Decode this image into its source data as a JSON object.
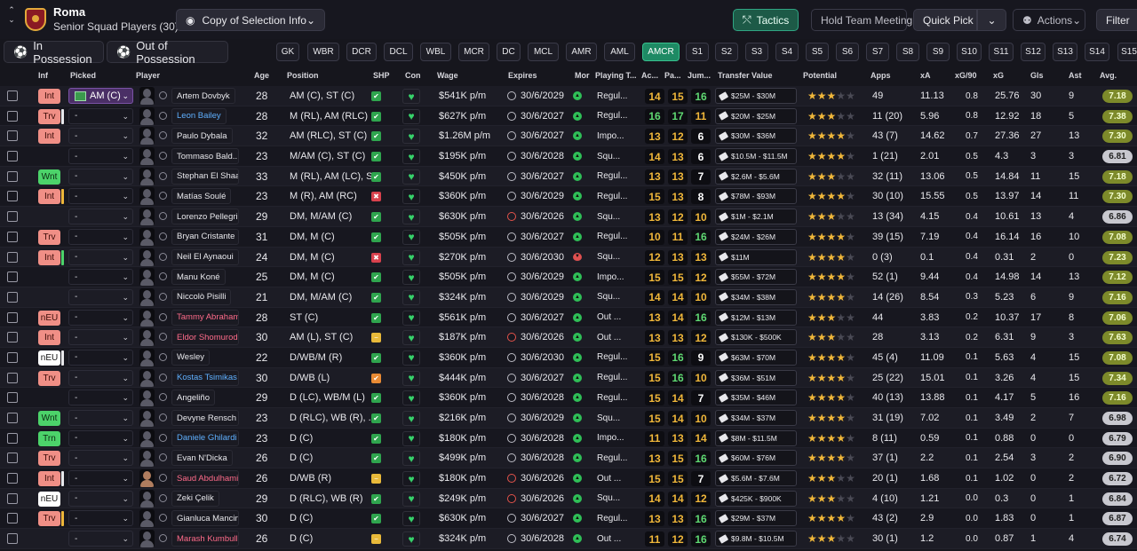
{
  "header": {
    "club": "Roma",
    "subtitle": "Senior Squad Players (30)",
    "copy_selection": "Copy of Selection Info",
    "tactics": "Tactics",
    "hold_meeting": "Hold Team Meeting",
    "quick_pick": "Quick Pick",
    "actions": "Actions",
    "filter": "Filter"
  },
  "possession": {
    "in": "In Possession",
    "out": "Out of Possession"
  },
  "position_chips": [
    "GK",
    "WBR",
    "DCR",
    "DCL",
    "WBL",
    "MCR",
    "DC",
    "MCL",
    "AMR",
    "AML",
    "AMCR",
    "S1",
    "S2",
    "S3",
    "S4",
    "S5",
    "S6",
    "S7",
    "S8",
    "S9",
    "S10",
    "S11",
    "S12",
    "S13",
    "S14",
    "S15"
  ],
  "selected_chip": "AMCR",
  "columns": {
    "inf": "Inf",
    "picked": "Picked",
    "player": "Player",
    "age": "Age",
    "position": "Position",
    "shp": "SHP",
    "con": "Con",
    "wage": "Wage",
    "expires": "Expires",
    "mor": "Mor",
    "playing_time": "Playing T...",
    "ac": "Ac...",
    "pa": "Pa...",
    "jum": "Jum...",
    "transfer_value": "Transfer Value",
    "potential": "Potential",
    "apps": "Apps",
    "xa": "xA",
    "xg90": "xG/90",
    "xg": "xG",
    "gls": "Gls",
    "ast": "Ast",
    "avg": "Avg."
  },
  "players": [
    {
      "inf": "Int",
      "inf_c": "red",
      "bar": "",
      "picked": "AM (C)",
      "name": "Artem Dovbyk",
      "nc": "",
      "age": "28",
      "pos": "AM (C), ST (C)",
      "shp": "g",
      "wage": "$541K p/m",
      "exp": "30/6/2029",
      "er": false,
      "mor": "g",
      "pt": "Regul...",
      "a": "14",
      "ac": "yl",
      "b": "15",
      "bc": "yl",
      "j": "16",
      "jc": "gr",
      "tv": "$25M - $30M",
      "pot": 3,
      "apps": "49",
      "xa": "11.13",
      "xg90": "0.8",
      "xg": "25.76",
      "gls": "30",
      "ast": "9",
      "avg": "7.18",
      "ag": "g"
    },
    {
      "inf": "Trv",
      "inf_c": "red",
      "bar": "#e8e8ec",
      "picked": "-",
      "name": "Leon Bailey",
      "nc": "blue",
      "age": "28",
      "pos": "M (RL), AM (RLC)",
      "shp": "g",
      "wage": "$627K p/m",
      "exp": "30/6/2027",
      "er": false,
      "mor": "g",
      "pt": "Regul...",
      "a": "16",
      "ac": "gr",
      "b": "17",
      "bc": "gr",
      "j": "11",
      "jc": "yl",
      "tv": "$20M - $25M",
      "pot": 3,
      "apps": "11 (20)",
      "xa": "5.96",
      "xg90": "0.8",
      "xg": "12.92",
      "gls": "18",
      "ast": "5",
      "avg": "7.38",
      "ag": "g"
    },
    {
      "inf": "Int",
      "inf_c": "red",
      "bar": "",
      "picked": "-",
      "name": "Paulo Dybala",
      "nc": "",
      "age": "32",
      "pos": "AM (RLC), ST (C)",
      "shp": "g",
      "wage": "$1.26M p/m",
      "exp": "30/6/2027",
      "er": false,
      "mor": "g",
      "pt": "Impo...",
      "a": "13",
      "ac": "yl",
      "b": "12",
      "bc": "yl",
      "j": "6",
      "jc": "wh",
      "tv": "$30M - $36M",
      "pot": 3.5,
      "apps": "43 (7)",
      "xa": "14.62",
      "xg90": "0.7",
      "xg": "27.36",
      "gls": "27",
      "ast": "13",
      "avg": "7.30",
      "ag": "g"
    },
    {
      "inf": "",
      "inf_c": "",
      "bar": "",
      "picked": "-",
      "name": "Tommaso Bald...",
      "nc": "",
      "age": "23",
      "pos": "M/AM (C), ST (C)",
      "shp": "g",
      "wage": "$195K p/m",
      "exp": "30/6/2028",
      "er": false,
      "mor": "g",
      "pt": "Squ...",
      "a": "14",
      "ac": "yl",
      "b": "13",
      "bc": "yl",
      "j": "6",
      "jc": "wh",
      "tv": "$10.5M - $11.5M",
      "pot": 3.5,
      "apps": "1 (21)",
      "xa": "2.01",
      "xg90": "0.5",
      "xg": "4.3",
      "gls": "3",
      "ast": "3",
      "avg": "6.81",
      "ag": "d"
    },
    {
      "inf": "Wnt",
      "inf_c": "grn",
      "bar": "",
      "picked": "-",
      "name": "Stephan El Shaa...",
      "nc": "",
      "age": "33",
      "pos": "M (RL), AM (LC), S...",
      "shp": "g",
      "wage": "$450K p/m",
      "exp": "30/6/2027",
      "er": false,
      "mor": "g",
      "pt": "Regul...",
      "a": "13",
      "ac": "yl",
      "b": "13",
      "bc": "yl",
      "j": "7",
      "jc": "wh",
      "tv": "$2.6M - $5.6M",
      "pot": 2.5,
      "apps": "32 (11)",
      "xa": "13.06",
      "xg90": "0.5",
      "xg": "14.84",
      "gls": "11",
      "ast": "15",
      "avg": "7.18",
      "ag": "g"
    },
    {
      "inf": "Int",
      "inf_c": "red",
      "bar": "#f0b73a",
      "picked": "-",
      "name": "Matías Soulé",
      "nc": "",
      "age": "23",
      "pos": "M (R), AM (RC)",
      "shp": "x",
      "wage": "$360K p/m",
      "exp": "30/6/2029",
      "er": false,
      "mor": "g",
      "pt": "Regul...",
      "a": "15",
      "ac": "yl",
      "b": "13",
      "bc": "yl",
      "j": "8",
      "jc": "wh",
      "tv": "$78M - $93M",
      "pot": 3.5,
      "apps": "30 (10)",
      "xa": "15.55",
      "xg90": "0.5",
      "xg": "13.97",
      "gls": "14",
      "ast": "11",
      "avg": "7.30",
      "ag": "g"
    },
    {
      "inf": "",
      "inf_c": "",
      "bar": "",
      "picked": "-",
      "name": "Lorenzo Pellegrini",
      "nc": "",
      "age": "29",
      "pos": "DM, M/AM (C)",
      "shp": "g",
      "wage": "$630K p/m",
      "exp": "30/6/2026",
      "er": true,
      "mor": "g",
      "pt": "Squ...",
      "a": "13",
      "ac": "yl",
      "b": "12",
      "bc": "yl",
      "j": "10",
      "jc": "yl",
      "tv": "$1M - $2.1M",
      "pot": 3,
      "apps": "13 (34)",
      "xa": "4.15",
      "xg90": "0.4",
      "xg": "10.61",
      "gls": "13",
      "ast": "4",
      "avg": "6.86",
      "ag": "d"
    },
    {
      "inf": "Trv",
      "inf_c": "red",
      "bar": "",
      "picked": "-",
      "name": "Bryan Cristante",
      "nc": "",
      "age": "31",
      "pos": "DM, M (C)",
      "shp": "g",
      "wage": "$505K p/m",
      "exp": "30/6/2027",
      "er": false,
      "mor": "g",
      "pt": "Regul...",
      "a": "10",
      "ac": "yl",
      "b": "11",
      "bc": "yl",
      "j": "16",
      "jc": "gr",
      "tv": "$24M - $26M",
      "pot": 3.5,
      "apps": "39 (15)",
      "xa": "7.19",
      "xg90": "0.4",
      "xg": "16.14",
      "gls": "16",
      "ast": "10",
      "avg": "7.08",
      "ag": "g"
    },
    {
      "inf": "Int",
      "inf_c": "red",
      "bar": "#4cd36a",
      "picked": "-",
      "name": "Neil El Aynaoui",
      "nc": "",
      "age": "24",
      "pos": "DM, M (C)",
      "shp": "x",
      "wage": "$270K p/m",
      "exp": "30/6/2030",
      "er": false,
      "mor": "r",
      "pt": "Squ...",
      "a": "12",
      "ac": "yl",
      "b": "13",
      "bc": "yl",
      "j": "13",
      "jc": "yl",
      "tv": "$11M",
      "pot": 3.5,
      "apps": "0 (3)",
      "xa": "0.1",
      "xg90": "0.4",
      "xg": "0.31",
      "gls": "2",
      "ast": "0",
      "avg": "7.23",
      "ag": "g"
    },
    {
      "inf": "",
      "inf_c": "",
      "bar": "",
      "picked": "-",
      "name": "Manu Koné",
      "nc": "",
      "age": "25",
      "pos": "DM, M (C)",
      "shp": "g",
      "wage": "$505K p/m",
      "exp": "30/6/2029",
      "er": false,
      "mor": "g",
      "pt": "Impo...",
      "a": "15",
      "ac": "yl",
      "b": "15",
      "bc": "yl",
      "j": "12",
      "jc": "yl",
      "tv": "$55M - $72M",
      "pot": 3.5,
      "apps": "52 (1)",
      "xa": "9.44",
      "xg90": "0.4",
      "xg": "14.98",
      "gls": "14",
      "ast": "13",
      "avg": "7.12",
      "ag": "g"
    },
    {
      "inf": "",
      "inf_c": "",
      "bar": "",
      "picked": "-",
      "name": "Niccolò Pisilli",
      "nc": "",
      "age": "21",
      "pos": "DM, M/AM (C)",
      "shp": "g",
      "wage": "$324K p/m",
      "exp": "30/6/2029",
      "er": false,
      "mor": "g",
      "pt": "Squ...",
      "a": "14",
      "ac": "yl",
      "b": "14",
      "bc": "yl",
      "j": "10",
      "jc": "yl",
      "tv": "$34M - $38M",
      "pot": 4,
      "apps": "14 (26)",
      "xa": "8.54",
      "xg90": "0.3",
      "xg": "5.23",
      "gls": "6",
      "ast": "9",
      "avg": "7.16",
      "ag": "g"
    },
    {
      "inf": "nEU",
      "inf_c": "red",
      "bar": "",
      "picked": "-",
      "name": "Tammy Abraham",
      "nc": "pink",
      "age": "28",
      "pos": "ST (C)",
      "shp": "g",
      "wage": "$561K p/m",
      "exp": "30/6/2027",
      "er": false,
      "mor": "g",
      "pt": "Out ...",
      "a": "13",
      "ac": "yl",
      "b": "14",
      "bc": "yl",
      "j": "16",
      "jc": "gr",
      "tv": "$12M - $13M",
      "pot": 3,
      "apps": "44",
      "xa": "3.83",
      "xg90": "0.2",
      "xg": "10.37",
      "gls": "17",
      "ast": "8",
      "avg": "7.06",
      "ag": "g"
    },
    {
      "inf": "Int",
      "inf_c": "red",
      "bar": "",
      "picked": "-",
      "name": "Eldor Shomurod...",
      "nc": "pink",
      "age": "30",
      "pos": "AM (L), ST (C)",
      "shp": "y",
      "wage": "$187K p/m",
      "exp": "30/6/2026",
      "er": true,
      "mor": "g",
      "pt": "Out ...",
      "a": "13",
      "ac": "yl",
      "b": "13",
      "bc": "yl",
      "j": "12",
      "jc": "yl",
      "tv": "$130K - $500K",
      "pot": 2.5,
      "apps": "28",
      "xa": "3.13",
      "xg90": "0.2",
      "xg": "6.31",
      "gls": "9",
      "ast": "3",
      "avg": "7.63",
      "ag": "g"
    },
    {
      "inf": "nEU",
      "inf_c": "wht",
      "bar": "#e8e8ec",
      "picked": "-",
      "name": "Wesley",
      "nc": "",
      "age": "22",
      "pos": "D/WB/M (R)",
      "shp": "g",
      "wage": "$360K p/m",
      "exp": "30/6/2030",
      "er": false,
      "mor": "g",
      "pt": "Regul...",
      "a": "15",
      "ac": "yl",
      "b": "16",
      "bc": "gr",
      "j": "9",
      "jc": "wh",
      "tv": "$63M - $70M",
      "pot": 3.5,
      "apps": "45 (4)",
      "xa": "11.09",
      "xg90": "0.1",
      "xg": "5.63",
      "gls": "4",
      "ast": "15",
      "avg": "7.08",
      "ag": "g"
    },
    {
      "inf": "Trv",
      "inf_c": "red",
      "bar": "",
      "picked": "-",
      "name": "Kostas Tsimikas",
      "nc": "blue",
      "age": "30",
      "pos": "D/WB (L)",
      "shp": "o",
      "wage": "$444K p/m",
      "exp": "30/6/2027",
      "er": false,
      "mor": "g",
      "pt": "Regul...",
      "a": "15",
      "ac": "yl",
      "b": "16",
      "bc": "gr",
      "j": "10",
      "jc": "yl",
      "tv": "$36M - $51M",
      "pot": 3.5,
      "apps": "25 (22)",
      "xa": "15.01",
      "xg90": "0.1",
      "xg": "3.26",
      "gls": "4",
      "ast": "15",
      "avg": "7.34",
      "ag": "g"
    },
    {
      "inf": "",
      "inf_c": "",
      "bar": "",
      "picked": "-",
      "name": "Angeliño",
      "nc": "",
      "age": "29",
      "pos": "D (LC), WB/M (L)",
      "shp": "g",
      "wage": "$360K p/m",
      "exp": "30/6/2028",
      "er": false,
      "mor": "g",
      "pt": "Regul...",
      "a": "15",
      "ac": "yl",
      "b": "14",
      "bc": "yl",
      "j": "7",
      "jc": "wh",
      "tv": "$35M - $46M",
      "pot": 3.5,
      "apps": "40 (13)",
      "xa": "13.88",
      "xg90": "0.1",
      "xg": "4.17",
      "gls": "5",
      "ast": "16",
      "avg": "7.16",
      "ag": "g"
    },
    {
      "inf": "Wnt",
      "inf_c": "grn",
      "bar": "",
      "picked": "-",
      "name": "Devyne Rensch",
      "nc": "",
      "age": "23",
      "pos": "D (RLC), WB (R), ...",
      "shp": "g",
      "wage": "$216K p/m",
      "exp": "30/6/2029",
      "er": false,
      "mor": "g",
      "pt": "Squ...",
      "a": "15",
      "ac": "yl",
      "b": "14",
      "bc": "yl",
      "j": "10",
      "jc": "yl",
      "tv": "$34M - $37M",
      "pot": 3.5,
      "apps": "31 (19)",
      "xa": "7.02",
      "xg90": "0.1",
      "xg": "3.49",
      "gls": "2",
      "ast": "7",
      "avg": "6.98",
      "ag": "d"
    },
    {
      "inf": "Trn",
      "inf_c": "grn",
      "bar": "",
      "picked": "-",
      "name": "Daniele Ghilardi",
      "nc": "blue",
      "age": "23",
      "pos": "D (C)",
      "shp": "g",
      "wage": "$180K p/m",
      "exp": "30/6/2028",
      "er": false,
      "mor": "g",
      "pt": "Impo...",
      "a": "11",
      "ac": "yl",
      "b": "13",
      "bc": "yl",
      "j": "14",
      "jc": "yl",
      "tv": "$8M - $11.5M",
      "pot": 3.5,
      "apps": "8 (11)",
      "xa": "0.59",
      "xg90": "0.1",
      "xg": "0.88",
      "gls": "0",
      "ast": "0",
      "avg": "6.79",
      "ag": "d"
    },
    {
      "inf": "Trv",
      "inf_c": "red",
      "bar": "",
      "picked": "-",
      "name": "Evan N'Dicka",
      "nc": "",
      "age": "26",
      "pos": "D (C)",
      "shp": "g",
      "wage": "$499K p/m",
      "exp": "30/6/2028",
      "er": false,
      "mor": "g",
      "pt": "Regul...",
      "a": "13",
      "ac": "yl",
      "b": "15",
      "bc": "yl",
      "j": "16",
      "jc": "gr",
      "tv": "$60M - $76M",
      "pot": 3.5,
      "apps": "37 (1)",
      "xa": "2.2",
      "xg90": "0.1",
      "xg": "2.54",
      "gls": "3",
      "ast": "2",
      "avg": "6.90",
      "ag": "d"
    },
    {
      "inf": "Int",
      "inf_c": "red",
      "bar": "#e8e8ec",
      "picked": "-",
      "name": "Saud Abdulhamid",
      "nc": "pink",
      "age": "26",
      "pos": "D/WB (R)",
      "shp": "y",
      "wage": "$180K p/m",
      "exp": "30/6/2026",
      "er": true,
      "mor": "g",
      "pt": "Out ...",
      "a": "15",
      "ac": "yl",
      "b": "15",
      "bc": "yl",
      "j": "7",
      "jc": "wh",
      "tv": "$5.6M - $7.6M",
      "pot": 3,
      "apps": "20 (1)",
      "xa": "1.68",
      "xg90": "0.1",
      "xg": "1.02",
      "gls": "0",
      "ast": "2",
      "avg": "6.72",
      "ag": "d",
      "photo": true
    },
    {
      "inf": "nEU",
      "inf_c": "wht",
      "bar": "",
      "picked": "-",
      "name": "Zeki Çelik",
      "nc": "",
      "age": "29",
      "pos": "D (RLC), WB (R)",
      "shp": "g",
      "wage": "$249K p/m",
      "exp": "30/6/2026",
      "er": true,
      "mor": "g",
      "pt": "Squ...",
      "a": "14",
      "ac": "yl",
      "b": "14",
      "bc": "yl",
      "j": "12",
      "jc": "yl",
      "tv": "$425K - $900K",
      "pot": 2.5,
      "apps": "4 (10)",
      "xa": "1.21",
      "xg90": "0.0",
      "xg": "0.3",
      "gls": "0",
      "ast": "1",
      "avg": "6.84",
      "ag": "d"
    },
    {
      "inf": "Trv",
      "inf_c": "red",
      "bar": "#f0b73a",
      "picked": "-",
      "name": "Gianluca Mancini",
      "nc": "",
      "age": "30",
      "pos": "D (C)",
      "shp": "g",
      "wage": "$630K p/m",
      "exp": "30/6/2027",
      "er": false,
      "mor": "g",
      "pt": "Regul...",
      "a": "13",
      "ac": "yl",
      "b": "13",
      "bc": "yl",
      "j": "16",
      "jc": "gr",
      "tv": "$29M - $37M",
      "pot": 3.5,
      "apps": "43 (2)",
      "xa": "2.9",
      "xg90": "0.0",
      "xg": "1.83",
      "gls": "0",
      "ast": "1",
      "avg": "6.87",
      "ag": "d"
    },
    {
      "inf": "",
      "inf_c": "",
      "bar": "",
      "picked": "-",
      "name": "Marash Kumbulla",
      "nc": "pink",
      "age": "26",
      "pos": "D (C)",
      "shp": "y",
      "wage": "$324K p/m",
      "exp": "30/6/2028",
      "er": false,
      "mor": "g",
      "pt": "Out ...",
      "a": "11",
      "ac": "yl",
      "b": "12",
      "bc": "yl",
      "j": "16",
      "jc": "gr",
      "tv": "$9.8M - $10.5M",
      "pot": 2.5,
      "apps": "30 (1)",
      "xa": "1.2",
      "xg90": "0.0",
      "xg": "0.87",
      "gls": "1",
      "ast": "4",
      "avg": "6.74",
      "ag": "d"
    }
  ]
}
